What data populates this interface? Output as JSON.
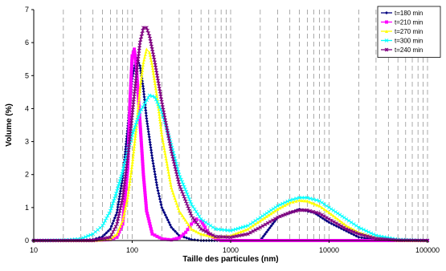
{
  "chart_data": {
    "type": "line",
    "title": "",
    "xlabel": "Taille des particules (nm)",
    "ylabel": "Volume (%)",
    "xscale": "log",
    "xlim": [
      10,
      100000
    ],
    "ylim": [
      0,
      7
    ],
    "x_ticks": [
      10,
      100,
      1000,
      10000,
      100000
    ],
    "x_tick_labels": [
      "10",
      "100",
      "1000",
      "10000",
      "100000"
    ],
    "y_ticks": [
      0,
      1,
      2,
      3,
      4,
      5,
      6,
      7
    ],
    "y_tick_labels": [
      "0",
      "1",
      "2",
      "3",
      "4",
      "5",
      "6",
      "7"
    ],
    "grid": "vertical dashed at log-decade subdivisions",
    "legend_position": "top-right",
    "series": [
      {
        "name": "t=180 min",
        "color": "#000080",
        "marker": "diamond",
        "points": [
          [
            10,
            0
          ],
          [
            20,
            0
          ],
          [
            30,
            0.01
          ],
          [
            40,
            0.03
          ],
          [
            50,
            0.12
          ],
          [
            60,
            0.35
          ],
          [
            70,
            0.85
          ],
          [
            80,
            1.9
          ],
          [
            90,
            3.4
          ],
          [
            100,
            4.9
          ],
          [
            110,
            5.55
          ],
          [
            120,
            5.3
          ],
          [
            130,
            4.6
          ],
          [
            140,
            3.7
          ],
          [
            160,
            2.5
          ],
          [
            180,
            1.6
          ],
          [
            200,
            1.0
          ],
          [
            250,
            0.4
          ],
          [
            300,
            0.15
          ],
          [
            400,
            0.03
          ],
          [
            500,
            0.0
          ],
          [
            1000,
            0
          ],
          [
            2000,
            0
          ],
          [
            3000,
            0.7
          ],
          [
            5000,
            0.95
          ],
          [
            7000,
            0.85
          ],
          [
            10000,
            0.55
          ],
          [
            20000,
            0.1
          ],
          [
            30000,
            0.02
          ],
          [
            100000,
            0
          ]
        ]
      },
      {
        "name": "t=210 min",
        "color": "#ff00ff",
        "marker": "square",
        "points": [
          [
            10,
            0
          ],
          [
            40,
            0
          ],
          [
            60,
            0.03
          ],
          [
            70,
            0.1
          ],
          [
            80,
            0.5
          ],
          [
            90,
            2.2
          ],
          [
            95,
            4.2
          ],
          [
            100,
            5.6
          ],
          [
            105,
            5.8
          ],
          [
            110,
            5.3
          ],
          [
            120,
            3.6
          ],
          [
            130,
            2.0
          ],
          [
            140,
            0.9
          ],
          [
            160,
            0.2
          ],
          [
            200,
            0.05
          ],
          [
            250,
            0.02
          ],
          [
            300,
            0.08
          ],
          [
            350,
            0.25
          ],
          [
            400,
            0.5
          ],
          [
            450,
            0.65
          ],
          [
            500,
            0.6
          ],
          [
            550,
            0.4
          ],
          [
            600,
            0.2
          ],
          [
            700,
            0.05
          ],
          [
            800,
            0
          ],
          [
            1000,
            0
          ],
          [
            100000,
            0
          ]
        ]
      },
      {
        "name": "t=270 min",
        "color": "#ffff00",
        "marker": "triangle",
        "points": [
          [
            10,
            0
          ],
          [
            40,
            0
          ],
          [
            60,
            0.05
          ],
          [
            70,
            0.2
          ],
          [
            80,
            0.6
          ],
          [
            90,
            1.3
          ],
          [
            100,
            2.3
          ],
          [
            110,
            3.4
          ],
          [
            120,
            4.6
          ],
          [
            130,
            5.4
          ],
          [
            140,
            5.8
          ],
          [
            150,
            5.7
          ],
          [
            160,
            5.3
          ],
          [
            180,
            4.3
          ],
          [
            200,
            3.2
          ],
          [
            250,
            1.6
          ],
          [
            300,
            0.9
          ],
          [
            400,
            0.35
          ],
          [
            500,
            0.2
          ],
          [
            700,
            0.1
          ],
          [
            1000,
            0.15
          ],
          [
            1500,
            0.35
          ],
          [
            2000,
            0.6
          ],
          [
            3000,
            0.95
          ],
          [
            4000,
            1.15
          ],
          [
            5000,
            1.22
          ],
          [
            6000,
            1.2
          ],
          [
            8000,
            1.05
          ],
          [
            10000,
            0.85
          ],
          [
            15000,
            0.45
          ],
          [
            20000,
            0.25
          ],
          [
            30000,
            0.08
          ],
          [
            50000,
            0.01
          ],
          [
            100000,
            0
          ]
        ]
      },
      {
        "name": "t=300 min",
        "color": "#00ffff",
        "marker": "x",
        "points": [
          [
            10,
            0
          ],
          [
            20,
            0.01
          ],
          [
            30,
            0.05
          ],
          [
            40,
            0.2
          ],
          [
            50,
            0.45
          ],
          [
            60,
            0.9
          ],
          [
            70,
            1.5
          ],
          [
            80,
            2.1
          ],
          [
            90,
            2.7
          ],
          [
            100,
            3.2
          ],
          [
            120,
            3.9
          ],
          [
            150,
            4.4
          ],
          [
            170,
            4.35
          ],
          [
            200,
            3.9
          ],
          [
            250,
            2.9
          ],
          [
            300,
            2.0
          ],
          [
            400,
            1.1
          ],
          [
            500,
            0.65
          ],
          [
            700,
            0.35
          ],
          [
            1000,
            0.3
          ],
          [
            1500,
            0.45
          ],
          [
            2000,
            0.7
          ],
          [
            3000,
            1.05
          ],
          [
            4000,
            1.22
          ],
          [
            5000,
            1.3
          ],
          [
            6000,
            1.3
          ],
          [
            8000,
            1.2
          ],
          [
            10000,
            1.0
          ],
          [
            15000,
            0.65
          ],
          [
            20000,
            0.4
          ],
          [
            30000,
            0.15
          ],
          [
            50000,
            0.03
          ],
          [
            100000,
            0
          ]
        ]
      },
      {
        "name": "t=240 min",
        "color": "#800080",
        "marker": "star",
        "points": [
          [
            10,
            0
          ],
          [
            40,
            0
          ],
          [
            60,
            0.1
          ],
          [
            70,
            0.5
          ],
          [
            80,
            1.3
          ],
          [
            90,
            2.5
          ],
          [
            100,
            3.8
          ],
          [
            110,
            5.0
          ],
          [
            120,
            6.0
          ],
          [
            130,
            6.45
          ],
          [
            140,
            6.45
          ],
          [
            150,
            6.2
          ],
          [
            170,
            5.4
          ],
          [
            200,
            4.2
          ],
          [
            250,
            2.7
          ],
          [
            300,
            1.7
          ],
          [
            400,
            0.75
          ],
          [
            500,
            0.35
          ],
          [
            700,
            0.12
          ],
          [
            1000,
            0.1
          ],
          [
            1500,
            0.2
          ],
          [
            2000,
            0.4
          ],
          [
            3000,
            0.7
          ],
          [
            4000,
            0.85
          ],
          [
            5000,
            0.92
          ],
          [
            6000,
            0.92
          ],
          [
            8000,
            0.82
          ],
          [
            10000,
            0.65
          ],
          [
            15000,
            0.35
          ],
          [
            20000,
            0.2
          ],
          [
            30000,
            0.06
          ],
          [
            50000,
            0.01
          ],
          [
            100000,
            0
          ]
        ]
      }
    ]
  }
}
